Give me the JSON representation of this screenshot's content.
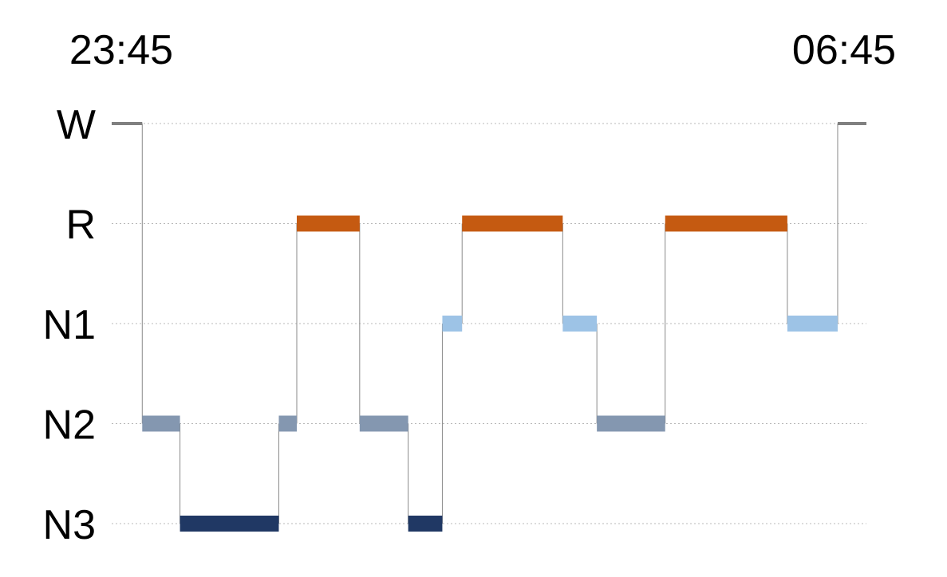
{
  "chart_data": {
    "type": "hypnogram",
    "title": "",
    "start_label": "23:45",
    "end_label": "06:45",
    "x_range_min": [
      0,
      420
    ],
    "stages": [
      "W",
      "R",
      "N1",
      "N2",
      "N3"
    ],
    "grid": true,
    "stage_colors": {
      "W": "#808080",
      "R": "#c55a11",
      "N1": "#9dc3e6",
      "N2": "#8497b0",
      "N3": "#203864"
    },
    "segments": [
      {
        "stage": "W",
        "start": 0,
        "end": 17
      },
      {
        "stage": "N2",
        "start": 17,
        "end": 38
      },
      {
        "stage": "N3",
        "start": 38,
        "end": 93
      },
      {
        "stage": "N2",
        "start": 93,
        "end": 103
      },
      {
        "stage": "R",
        "start": 103,
        "end": 138
      },
      {
        "stage": "N2",
        "start": 138,
        "end": 165
      },
      {
        "stage": "N3",
        "start": 165,
        "end": 184
      },
      {
        "stage": "N1",
        "start": 184,
        "end": 195
      },
      {
        "stage": "R",
        "start": 195,
        "end": 251
      },
      {
        "stage": "N1",
        "start": 251,
        "end": 270
      },
      {
        "stage": "N2",
        "start": 270,
        "end": 308
      },
      {
        "stage": "R",
        "start": 308,
        "end": 376
      },
      {
        "stage": "N1",
        "start": 376,
        "end": 404
      },
      {
        "stage": "W",
        "start": 404,
        "end": 420
      }
    ]
  }
}
